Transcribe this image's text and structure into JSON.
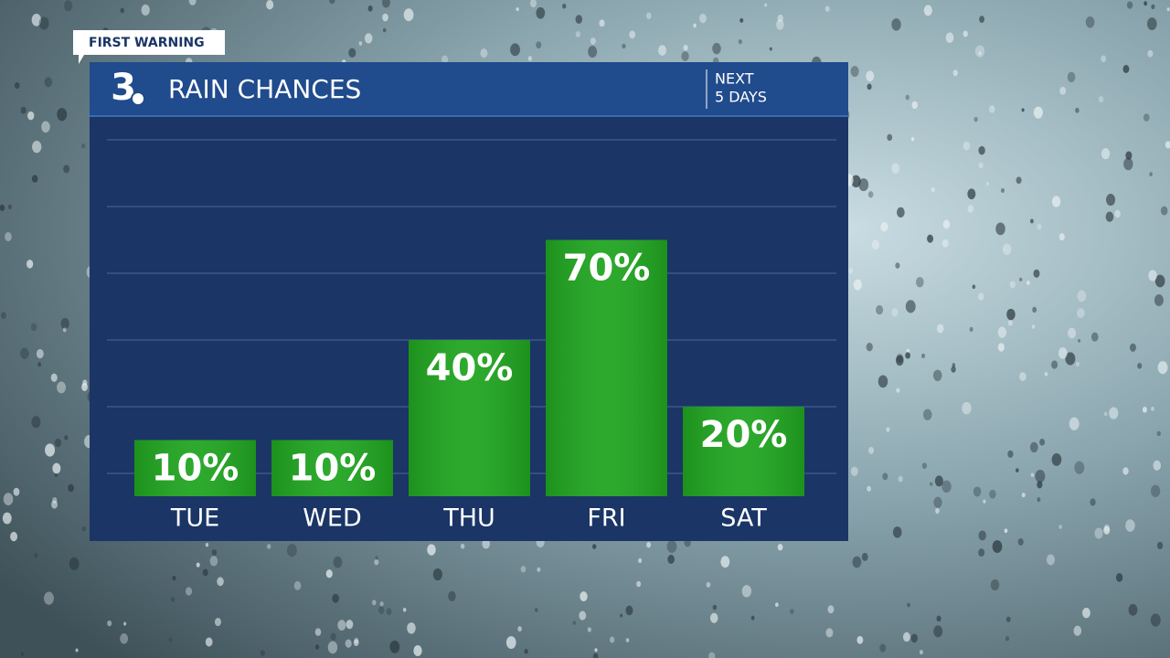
{
  "header": {
    "badge": "FIRST WARNING",
    "logo": "3"
  },
  "chart_data": {
    "type": "bar",
    "title": "RAIN CHANCES",
    "subtitle": [
      "NEXT",
      "5 DAYS"
    ],
    "categories": [
      "TUE",
      "WED",
      "THU",
      "FRI",
      "SAT"
    ],
    "values": [
      10,
      10,
      40,
      70,
      20
    ],
    "value_labels": [
      "10%",
      "10%",
      "40%",
      "70%",
      "20%"
    ],
    "color": "#20a520",
    "ylim": [
      0,
      100
    ],
    "yticks": [
      0,
      20,
      40,
      60,
      80,
      100
    ],
    "grid": true
  }
}
